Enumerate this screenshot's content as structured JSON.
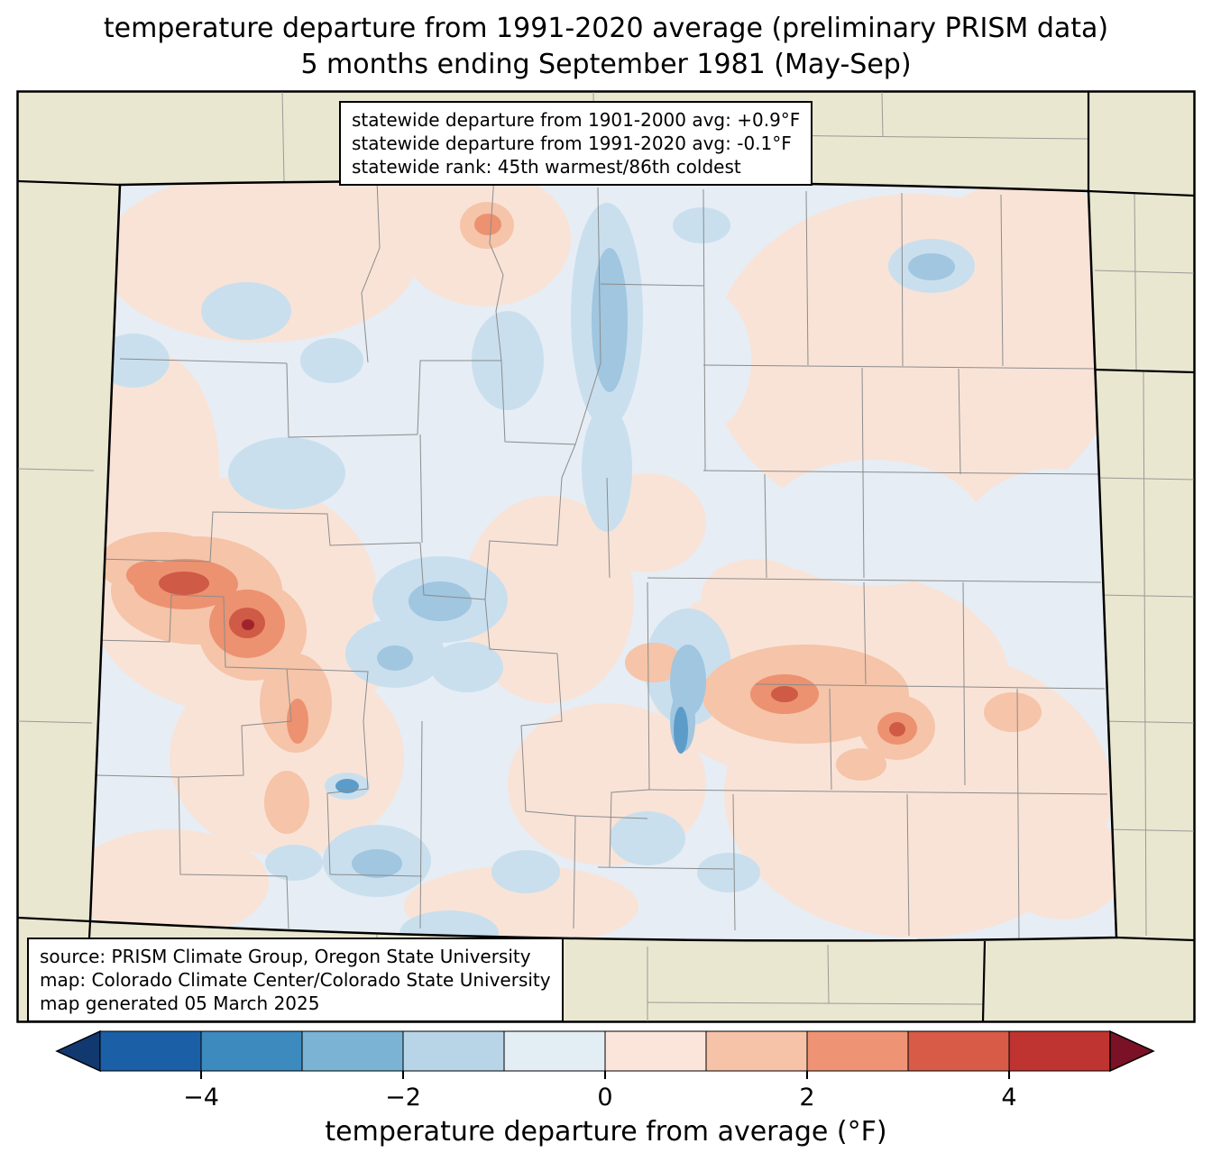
{
  "title": {
    "line1": "temperature departure from 1991-2020 average (preliminary PRISM data)",
    "line2": "5 months ending September 1981 (May-Sep)"
  },
  "stats_box": {
    "lines": [
      "statewide departure from 1901-2000 avg: +0.9°F",
      "statewide departure from 1991-2020 avg: -0.1°F",
      "statewide rank: 45th warmest/86th coldest"
    ]
  },
  "source_box": {
    "lines": [
      "source: PRISM Climate Group, Oregon State University",
      "map: Colorado Climate Center/Colorado State University",
      "map generated 05 March 2025"
    ]
  },
  "colorbar": {
    "label": "temperature departure from average (°F)",
    "range": [
      -5,
      5
    ],
    "tick_values": [
      -4,
      -2,
      0,
      2,
      4
    ],
    "tick_labels": [
      "−4",
      "−2",
      "0",
      "2",
      "4"
    ],
    "segment_colors": [
      "#1b5fa6",
      "#3c8abe",
      "#7ab3d4",
      "#b8d5e8",
      "#e3edf4",
      "#fbe5da",
      "#f6c3a8",
      "#ee9474",
      "#d75b47",
      "#bf3430"
    ],
    "arrow_left_color": "#11396f",
    "arrow_right_color": "#7a1126"
  },
  "palette": {
    "background_beige": "#eae7d1",
    "state_base": "#e6edf4",
    "pink_light": "#f9e3d7",
    "blue_light": "#c9dfee",
    "blue_mid": "#a0c6e0",
    "blue_dark": "#5c9cc9",
    "orange_light": "#f5c4a9",
    "orange_mid": "#ec9270",
    "red": "#cf5a45",
    "maroon": "#9f222c",
    "county_line": "#8c8c8c",
    "state_line": "#000000"
  }
}
